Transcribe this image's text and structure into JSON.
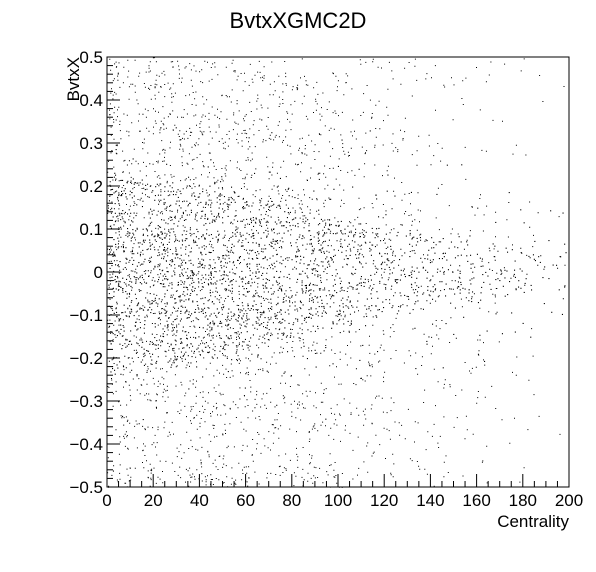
{
  "chart_data": {
    "type": "scatter",
    "title": "BvtxXGMC2D",
    "xlabel": "Centrality",
    "ylabel": "BvtxX",
    "xlim": [
      0,
      200
    ],
    "ylim": [
      -0.5,
      0.5
    ],
    "x_ticks": [
      "0",
      "20",
      "40",
      "60",
      "80",
      "100",
      "120",
      "140",
      "160",
      "180",
      "200"
    ],
    "y_ticks": [
      "−0.5",
      "−0.4",
      "−0.3",
      "−0.2",
      "−0.1",
      "0",
      "0.1",
      "0.2",
      "0.3",
      "0.4",
      "0.5"
    ],
    "grid": false,
    "legend": "none",
    "marker_color": "#000000",
    "density_profile": [
      {
        "centrality": 0,
        "y_core_halfwidth": 0.23,
        "density": "very high"
      },
      {
        "centrality": 40,
        "y_core_halfwidth": 0.2,
        "density": "very high"
      },
      {
        "centrality": 80,
        "y_core_halfwidth": 0.15,
        "density": "high"
      },
      {
        "centrality": 120,
        "y_core_halfwidth": 0.1,
        "density": "medium"
      },
      {
        "centrality": 160,
        "y_core_halfwidth": 0.07,
        "density": "low"
      },
      {
        "centrality": 200,
        "y_core_halfwidth": 0.05,
        "density": "very low"
      }
    ]
  }
}
